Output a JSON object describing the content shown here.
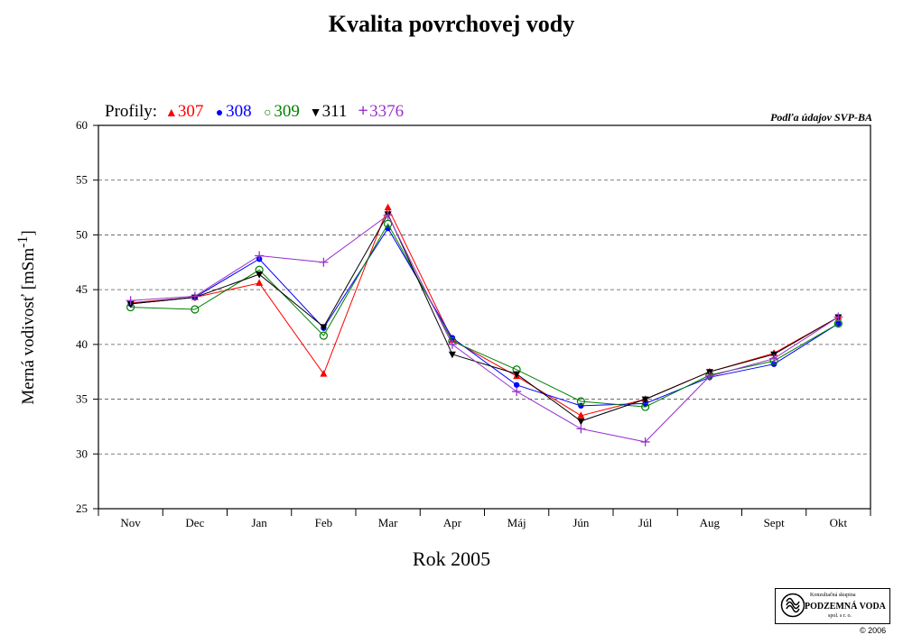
{
  "page": {
    "title": "Kvalita povrchovej vody",
    "source": "Podľa údajov SVP-BA",
    "copyright": "© 2006"
  },
  "logo": {
    "line1": "Konzultačná skupina",
    "line2": "PODZEMNÁ VODA",
    "line3": "spol. s r. o."
  },
  "chart_data": {
    "type": "line",
    "title": "Kvalita povrchovej vody",
    "xlabel": "Rok 2005",
    "ylabel": "Merná vodivosť [mSm-1]",
    "legend_prefix": "Profily:",
    "legend_placement": "top-left",
    "categories": [
      "Nov",
      "Dec",
      "Jan",
      "Feb",
      "Mar",
      "Apr",
      "Máj",
      "Jún",
      "Júl",
      "Aug",
      "Sept",
      "Okt"
    ],
    "ylim": [
      25,
      60
    ],
    "yticks": [
      25,
      30,
      35,
      40,
      45,
      50,
      55,
      60
    ],
    "grid": "horizontal dashed",
    "series": [
      {
        "name": "307",
        "color": "#ff0000",
        "marker": "triangle-up",
        "values": [
          43.8,
          44.3,
          45.6,
          37.3,
          52.5,
          40.4,
          37.1,
          33.5,
          35.0,
          37.5,
          39.2,
          42.5
        ]
      },
      {
        "name": "308",
        "color": "#0000ff",
        "marker": "circle-filled",
        "values": [
          43.7,
          44.3,
          47.8,
          41.5,
          50.6,
          40.6,
          36.3,
          34.4,
          34.6,
          37.0,
          38.2,
          41.9
        ]
      },
      {
        "name": "309",
        "color": "#008000",
        "marker": "circle-open",
        "values": [
          43.4,
          43.2,
          46.8,
          40.8,
          51.0,
          40.3,
          37.7,
          34.8,
          34.3,
          37.2,
          38.5,
          41.9
        ]
      },
      {
        "name": "311",
        "color": "#000000",
        "marker": "triangle-down",
        "values": [
          43.7,
          44.3,
          46.4,
          41.6,
          51.9,
          39.1,
          37.3,
          33.0,
          35.0,
          37.5,
          39.1,
          42.5
        ]
      },
      {
        "name": "3376",
        "color": "#9933cc",
        "marker": "plus",
        "values": [
          44.0,
          44.4,
          48.1,
          47.5,
          51.8,
          40.0,
          35.7,
          32.3,
          31.1,
          37.1,
          38.7,
          42.5
        ]
      }
    ]
  }
}
